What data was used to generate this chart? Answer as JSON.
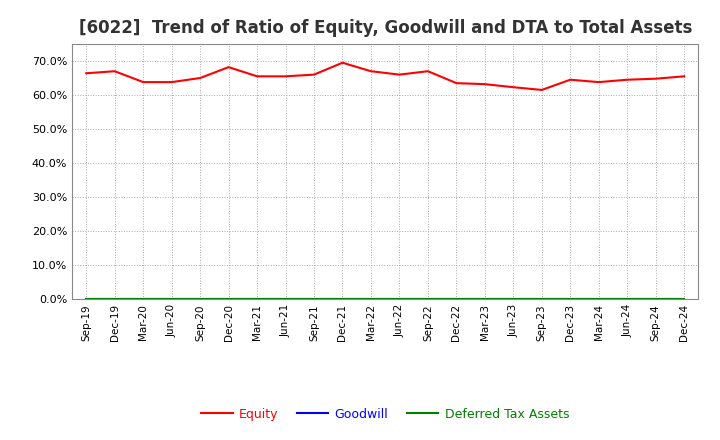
{
  "title": "[6022]  Trend of Ratio of Equity, Goodwill and DTA to Total Assets",
  "x_labels": [
    "Sep-19",
    "Dec-19",
    "Mar-20",
    "Jun-20",
    "Sep-20",
    "Dec-20",
    "Mar-21",
    "Jun-21",
    "Sep-21",
    "Dec-21",
    "Mar-22",
    "Jun-22",
    "Sep-22",
    "Dec-22",
    "Mar-23",
    "Jun-23",
    "Sep-23",
    "Dec-23",
    "Mar-24",
    "Jun-24",
    "Sep-24",
    "Dec-24"
  ],
  "equity": [
    0.664,
    0.67,
    0.638,
    0.638,
    0.65,
    0.682,
    0.655,
    0.655,
    0.66,
    0.695,
    0.67,
    0.66,
    0.67,
    0.635,
    0.632,
    0.623,
    0.615,
    0.645,
    0.638,
    0.645,
    0.648,
    0.655
  ],
  "goodwill": [
    0.0,
    0.0,
    0.0,
    0.0,
    0.0,
    0.0,
    0.0,
    0.0,
    0.0,
    0.0,
    0.0,
    0.0,
    0.0,
    0.0,
    0.0,
    0.0,
    0.0,
    0.0,
    0.0,
    0.0,
    0.0,
    0.0
  ],
  "dta": [
    0.0,
    0.0,
    0.0,
    0.0,
    0.0,
    0.0,
    0.0,
    0.0,
    0.0,
    0.0,
    0.0,
    0.0,
    0.0,
    0.0,
    0.0,
    0.0,
    0.0,
    0.0,
    0.0,
    0.0,
    0.0,
    0.0
  ],
  "equity_color": "#FF0000",
  "goodwill_color": "#0000FF",
  "dta_color": "#008000",
  "ylim": [
    0.0,
    0.75
  ],
  "yticks": [
    0.0,
    0.1,
    0.2,
    0.3,
    0.4,
    0.5,
    0.6,
    0.7
  ],
  "background_color": "#FFFFFF",
  "grid_color": "#AAAAAA",
  "title_fontsize": 12,
  "legend_labels": [
    "Equity",
    "Goodwill",
    "Deferred Tax Assets"
  ],
  "legend_colors": [
    "#FF0000",
    "#0000FF",
    "#008000"
  ]
}
